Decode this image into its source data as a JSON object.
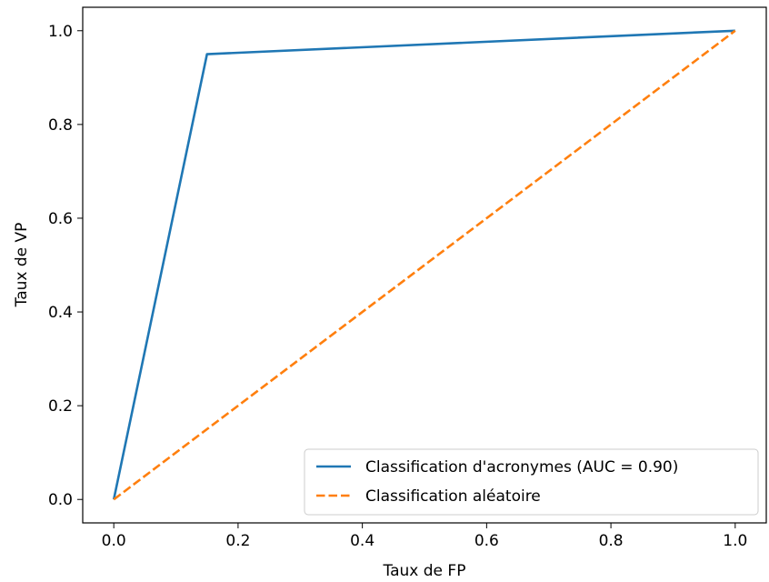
{
  "chart_data": {
    "type": "line",
    "title": "",
    "xlabel": "Taux de FP",
    "ylabel": "Taux de VP",
    "xlim": [
      -0.05,
      1.05
    ],
    "ylim": [
      -0.05,
      1.05
    ],
    "xticks": [
      "0.0",
      "0.2",
      "0.4",
      "0.6",
      "0.8",
      "1.0"
    ],
    "yticks": [
      "0.0",
      "0.2",
      "0.4",
      "0.6",
      "0.8",
      "1.0"
    ],
    "grid": false,
    "legend_position": "bottom-right",
    "series": [
      {
        "name": "Classification d'acronymes (AUC = 0.90)",
        "color": "#1f77b4",
        "style": "solid",
        "x": [
          0.0,
          0.15,
          1.0
        ],
        "y": [
          0.0,
          0.95,
          1.0
        ]
      },
      {
        "name": "Classification aléatoire",
        "color": "#ff7f0e",
        "style": "dashed",
        "x": [
          0.0,
          1.0
        ],
        "y": [
          0.0,
          1.0
        ]
      }
    ]
  }
}
